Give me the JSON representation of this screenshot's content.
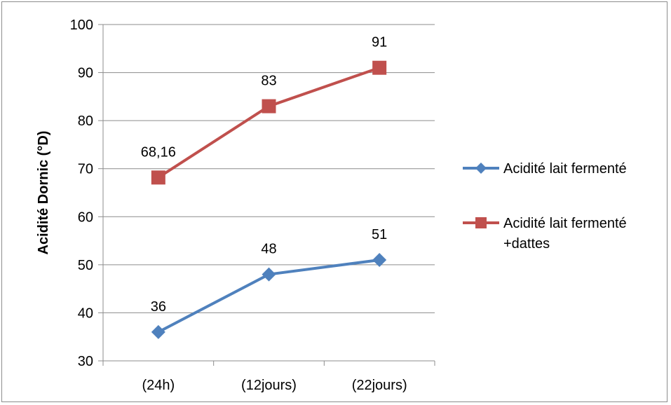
{
  "chart_data": {
    "type": "line",
    "title": "",
    "xlabel": "",
    "ylabel": "Acidité Dornic (°D)",
    "categories": [
      "(24h)",
      "(12jours)",
      "(22jours)"
    ],
    "ylim": [
      30,
      100
    ],
    "yticks": [
      30,
      40,
      50,
      60,
      70,
      80,
      90,
      100
    ],
    "grid": true,
    "legend_position": "right",
    "series": [
      {
        "name": "Acidité lait fermenté",
        "values": [
          36,
          48,
          51
        ],
        "labels": [
          "36",
          "48",
          "51"
        ],
        "color": "#4f81bd",
        "marker": "diamond"
      },
      {
        "name": "Acidité lait fermenté +dattes",
        "name_lines": [
          "Acidité lait fermenté",
          "+dattes"
        ],
        "values": [
          68.16,
          83,
          91
        ],
        "labels": [
          "68,16",
          "83",
          "91"
        ],
        "color": "#c0504d",
        "marker": "square"
      }
    ]
  }
}
